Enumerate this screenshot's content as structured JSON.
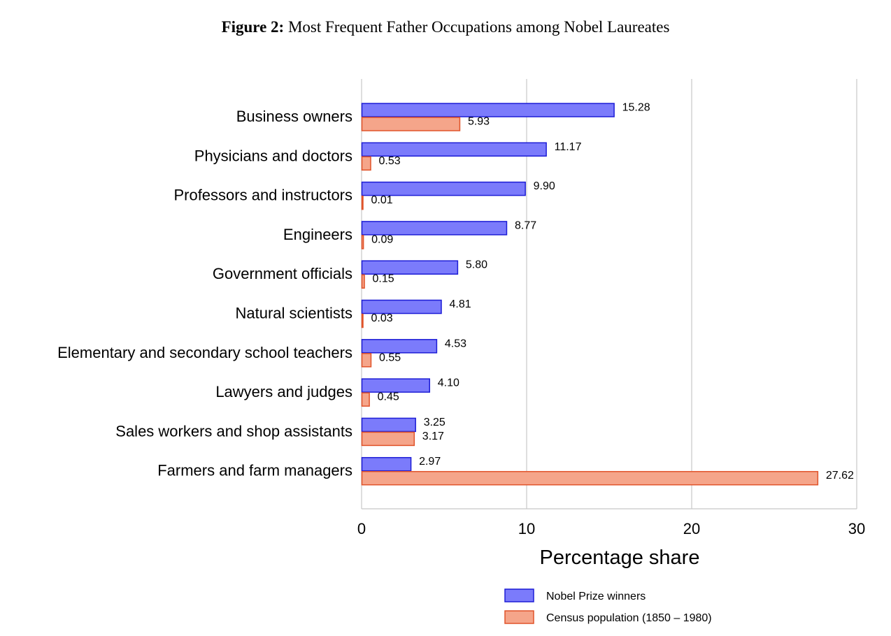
{
  "figure_title": {
    "lead": "Figure 2:",
    "text": "Most Frequent Father Occupations among Nobel Laureates"
  },
  "chart_data": {
    "type": "bar",
    "orientation": "horizontal",
    "categories": [
      "Business owners",
      "Physicians and doctors",
      "Professors and instructors",
      "Engineers",
      "Government officials",
      "Natural scientists",
      "Elementary and secondary school teachers",
      "Lawyers and judges",
      "Sales workers and shop assistants",
      "Farmers and farm managers"
    ],
    "series": [
      {
        "name": "Nobel Prize winners",
        "color": "#7b7bfb",
        "stroke": "#1d1dd6",
        "values": [
          15.28,
          11.17,
          9.9,
          8.77,
          5.8,
          4.81,
          4.53,
          4.1,
          3.25,
          2.97
        ],
        "labels": [
          "15.28",
          "11.17",
          "9.90",
          "8.77",
          "5.80",
          "4.81",
          "4.53",
          "4.10",
          "3.25",
          "2.97"
        ]
      },
      {
        "name": "Census population (1850 – 1980)",
        "color": "#f5a58a",
        "stroke": "#e0532a",
        "values": [
          5.93,
          0.53,
          0.01,
          0.09,
          0.15,
          0.03,
          0.55,
          0.45,
          3.17,
          27.62
        ],
        "labels": [
          "5.93",
          "0.53",
          "0.01",
          "0.09",
          "0.15",
          "0.03",
          "0.55",
          "0.45",
          "3.17",
          "27.62"
        ]
      }
    ],
    "xlabel": "Percentage share",
    "xlim": [
      0,
      30
    ],
    "xticks": [
      0,
      10,
      20,
      30
    ],
    "xtick_labels": [
      "0",
      "10",
      "20",
      "30"
    ],
    "grid": "vertical",
    "legend_position": "bottom"
  }
}
